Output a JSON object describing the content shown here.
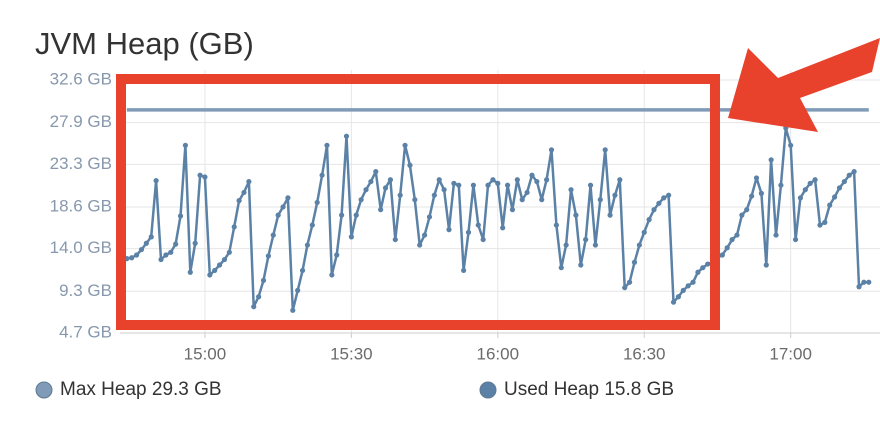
{
  "chart_data": {
    "type": "line",
    "title": "JVM Heap (GB)",
    "x": [
      884,
      885,
      886,
      887,
      888,
      889,
      890,
      891,
      892,
      893,
      894,
      895,
      896,
      897,
      898,
      899,
      900,
      901,
      902,
      903,
      904,
      905,
      906,
      907,
      908,
      909,
      910,
      911,
      912,
      913,
      914,
      915,
      916,
      917,
      918,
      919,
      920,
      921,
      922,
      923,
      924,
      925,
      926,
      927,
      928,
      929,
      930,
      931,
      932,
      933,
      934,
      935,
      936,
      937,
      938,
      939,
      940,
      941,
      942,
      943,
      944,
      945,
      946,
      947,
      948,
      949,
      950,
      951,
      952,
      953,
      954,
      955,
      956,
      957,
      958,
      959,
      960,
      961,
      962,
      963,
      964,
      965,
      966,
      967,
      968,
      969,
      970,
      971,
      972,
      973,
      974,
      975,
      976,
      977,
      978,
      979,
      980,
      981,
      982,
      983,
      984,
      985,
      986,
      987,
      988,
      989,
      990,
      991,
      992,
      993,
      994,
      995,
      996,
      997,
      998,
      999,
      1000,
      1001,
      1002,
      1003,
      1004,
      1005,
      1006,
      1007,
      1008,
      1009,
      1010,
      1011,
      1012,
      1013,
      1014,
      1015,
      1016,
      1017,
      1018,
      1019,
      1020,
      1021,
      1022,
      1023,
      1024,
      1025,
      1026,
      1027,
      1028,
      1029,
      1030,
      1031,
      1032,
      1033,
      1034,
      1035,
      1036
    ],
    "series": [
      {
        "name": "Max Heap 29.3 GB",
        "color": "#7f9bb8",
        "markers": false,
        "values": [
          29.3,
          29.3,
          29.3,
          29.3,
          29.3,
          29.3,
          29.3,
          29.3,
          29.3,
          29.3,
          29.3,
          29.3,
          29.3,
          29.3,
          29.3,
          29.3,
          29.3,
          29.3,
          29.3,
          29.3,
          29.3,
          29.3,
          29.3,
          29.3,
          29.3,
          29.3,
          29.3,
          29.3,
          29.3,
          29.3,
          29.3,
          29.3,
          29.3,
          29.3,
          29.3,
          29.3,
          29.3,
          29.3,
          29.3,
          29.3,
          29.3,
          29.3,
          29.3,
          29.3,
          29.3,
          29.3,
          29.3,
          29.3,
          29.3,
          29.3,
          29.3,
          29.3,
          29.3,
          29.3,
          29.3,
          29.3,
          29.3,
          29.3,
          29.3,
          29.3,
          29.3,
          29.3,
          29.3,
          29.3,
          29.3,
          29.3,
          29.3,
          29.3,
          29.3,
          29.3,
          29.3,
          29.3,
          29.3,
          29.3,
          29.3,
          29.3,
          29.3,
          29.3,
          29.3,
          29.3,
          29.3,
          29.3,
          29.3,
          29.3,
          29.3,
          29.3,
          29.3,
          29.3,
          29.3,
          29.3,
          29.3,
          29.3,
          29.3,
          29.3,
          29.3,
          29.3,
          29.3,
          29.3,
          29.3,
          29.3,
          29.3,
          29.3,
          29.3,
          29.3,
          29.3,
          29.3,
          29.3,
          29.3,
          29.3,
          29.3,
          29.3,
          29.3,
          29.3,
          29.3,
          29.3,
          29.3,
          29.3,
          29.3,
          29.3,
          29.3,
          29.3,
          29.3,
          29.3,
          29.3,
          29.3,
          29.3,
          29.3,
          29.3,
          29.3,
          29.3,
          29.3,
          29.3,
          29.3,
          29.3,
          29.3,
          29.3,
          29.3,
          29.3,
          29.3,
          29.3,
          29.3,
          29.3,
          29.3,
          29.3,
          29.3,
          29.3,
          29.3,
          29.3,
          29.3,
          29.3,
          29.3,
          29.3,
          29.3
        ]
      },
      {
        "name": "Used Heap 15.8 GB",
        "color": "#5b82a6",
        "markers": true,
        "values": [
          12.9,
          13.0,
          13.3,
          13.9,
          14.6,
          15.3,
          21.5,
          12.8,
          13.3,
          13.6,
          14.5,
          17.6,
          25.4,
          11.4,
          14.6,
          22.1,
          21.9,
          11.1,
          11.6,
          12.2,
          12.8,
          13.6,
          16.4,
          19.3,
          20.2,
          21.4,
          7.6,
          8.7,
          10.5,
          13.2,
          15.5,
          17.7,
          18.6,
          19.6,
          7.2,
          9.4,
          11.6,
          14.4,
          16.6,
          19.1,
          22.1,
          25.4,
          11.1,
          13.3,
          17.7,
          26.4,
          15.3,
          17.7,
          19.4,
          20.5,
          21.4,
          22.5,
          18.3,
          20.7,
          21.6,
          15.0,
          19.9,
          25.4,
          23.2,
          19.4,
          14.4,
          15.5,
          17.5,
          19.9,
          21.6,
          20.5,
          16.1,
          21.2,
          21.0,
          11.6,
          15.8,
          21.0,
          16.6,
          15.0,
          21.0,
          21.6,
          21.2,
          16.3,
          21.0,
          18.3,
          21.6,
          19.4,
          20.2,
          22.1,
          21.4,
          19.4,
          21.6,
          24.9,
          16.6,
          11.9,
          14.4,
          20.5,
          17.7,
          12.2,
          15.0,
          21.0,
          14.4,
          19.4,
          24.9,
          17.7,
          19.9,
          21.6,
          9.7,
          10.3,
          12.5,
          14.4,
          15.8,
          17.2,
          18.3,
          19.0,
          19.6,
          19.9,
          8.1,
          8.7,
          9.4,
          9.9,
          10.3,
          11.4,
          11.9,
          12.3,
          12.5,
          13.0,
          13.3,
          14.1,
          15.0,
          15.5,
          17.7,
          18.3,
          19.8,
          21.8,
          20.1,
          12.2,
          23.8,
          15.5,
          21.0,
          27.3,
          25.4,
          15.0,
          19.6,
          20.5,
          21.2,
          21.6,
          16.6,
          16.9,
          18.8,
          19.7,
          20.7,
          21.4,
          22.1,
          22.5,
          9.8,
          10.3,
          10.3
        ]
      }
    ],
    "xlim": [
      882.6,
      1038.3
    ],
    "xticks": [
      {
        "value": 900,
        "label": "15:00"
      },
      {
        "value": 930,
        "label": "15:30"
      },
      {
        "value": 960,
        "label": "16:00"
      },
      {
        "value": 990,
        "label": "16:30"
      },
      {
        "value": 1020,
        "label": "17:00"
      }
    ],
    "ylim": [
      4.7,
      32.6
    ],
    "yticks": [
      {
        "value": 4.7,
        "label": "4.7 GB"
      },
      {
        "value": 9.3,
        "label": "9.3 GB"
      },
      {
        "value": 14.0,
        "label": "14.0 GB"
      },
      {
        "value": 18.6,
        "label": "18.6 GB"
      },
      {
        "value": 23.3,
        "label": "23.3 GB"
      },
      {
        "value": 27.9,
        "label": "27.9 GB"
      },
      {
        "value": 32.6,
        "label": "32.6 GB"
      }
    ],
    "grid": true,
    "legend": "bottom"
  }
}
